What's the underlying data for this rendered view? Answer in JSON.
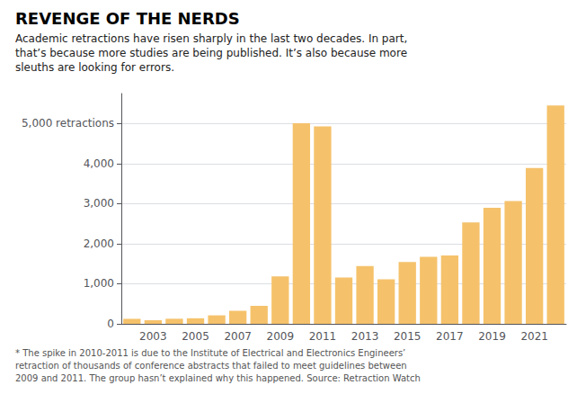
{
  "chart_data": {
    "type": "bar",
    "title": "REVENGE OF THE NERDS",
    "subtitle": "Academic retractions have risen sharply in the last two decades. In part,\nthat’s because more studies are being published. It’s also because more\nsleuths are looking for errors.",
    "footnote": "* The spike in 2010-2011 is due to the Institute of Electrical and Electronics Engineers’\nretraction of thousands of conference abstracts that failed to meet guidelines between\n2009 and 2011. The group hasn’t explained why this happened. Source: Retraction Watch",
    "categories": [
      null,
      "2003",
      null,
      "2005",
      null,
      "2007",
      null,
      "2009",
      null,
      "2011",
      null,
      "2013",
      null,
      "2015",
      null,
      "2017",
      null,
      "2019",
      null,
      "2021",
      null
    ],
    "values": [
      125,
      90,
      127,
      139,
      212,
      328,
      449,
      1183,
      5009,
      4931,
      1155,
      1445,
      1113,
      1543,
      1674,
      1705,
      2531,
      2900,
      3067,
      3894,
      5454
    ],
    "color": "#F5C26B",
    "ylim": [
      0,
      5750
    ],
    "yticks": [
      0,
      {
        "value": 1000,
        "label": "1,000"
      },
      {
        "value": 2000,
        "label": "2,000"
      },
      {
        "value": 3000,
        "label": "3,000"
      },
      {
        "value": 4000,
        "label": "4,000"
      },
      {
        "value": 5000,
        "label": "5,000 retractions"
      }
    ],
    "grid": true
  }
}
